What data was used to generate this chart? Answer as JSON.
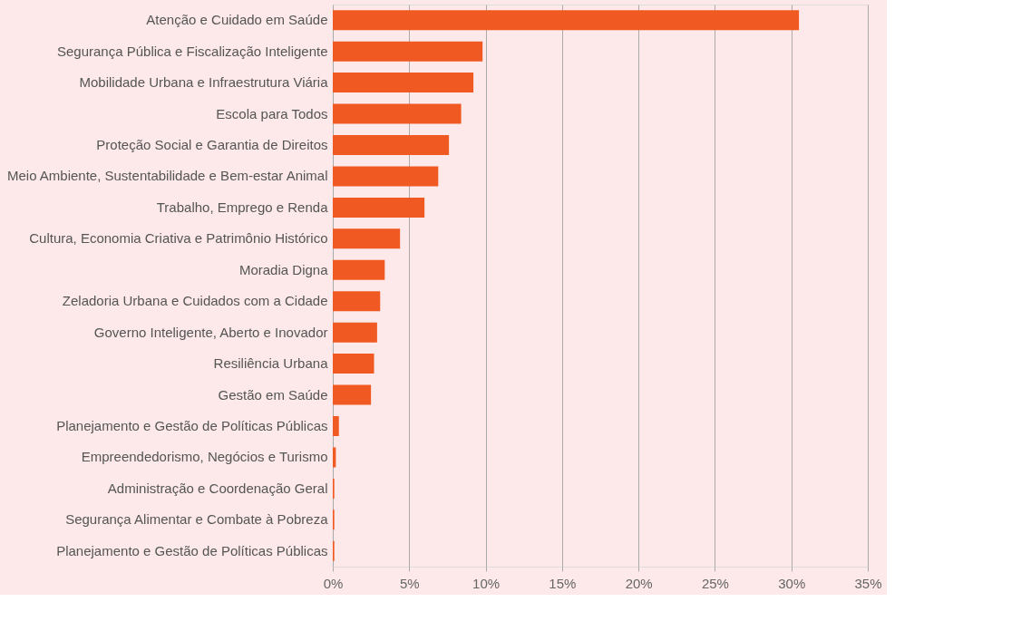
{
  "chart_data": {
    "type": "bar",
    "orientation": "horizontal",
    "categories": [
      "Atenção e Cuidado em Saúde",
      "Segurança Pública e Fiscalização Inteligente",
      "Mobilidade Urbana e Infraestrutura Viária",
      "Escola para Todos",
      "Proteção Social e Garantia de Direitos",
      "Meio Ambiente, Sustentabilidade e Bem-estar Animal",
      "Trabalho, Emprego e Renda",
      "Cultura, Economia Criativa e Patrimônio Histórico",
      "Moradia Digna",
      "Zeladoria Urbana e Cuidados com a Cidade",
      "Governo Inteligente, Aberto e Inovador",
      "Resiliência Urbana",
      "Gestão em Saúde",
      "Planejamento e Gestão de Políticas Públicas",
      "Empreendedorismo, Negócios e Turismo",
      "Administração e Coordenação Geral",
      "Segurança Alimentar e Combate à Pobreza",
      "Planejamento e Gestão de Políticas Públicas"
    ],
    "values": [
      30.5,
      9.8,
      9.2,
      8.4,
      7.6,
      6.9,
      6.0,
      4.4,
      3.4,
      3.1,
      2.9,
      2.7,
      2.5,
      0.4,
      0.2,
      0.1,
      0.1,
      0.1
    ],
    "color": "#f05a22",
    "xlim": [
      0,
      35
    ],
    "xticks": [
      {
        "value": 0,
        "label": "0%"
      },
      {
        "value": 5,
        "label": "5%"
      },
      {
        "value": 10,
        "label": "10%"
      },
      {
        "value": 15,
        "label": "15%"
      },
      {
        "value": 20,
        "label": "20%"
      },
      {
        "value": 25,
        "label": "25%"
      },
      {
        "value": 30,
        "label": "30%"
      },
      {
        "value": 35,
        "label": "35%"
      }
    ],
    "grid": "x"
  }
}
